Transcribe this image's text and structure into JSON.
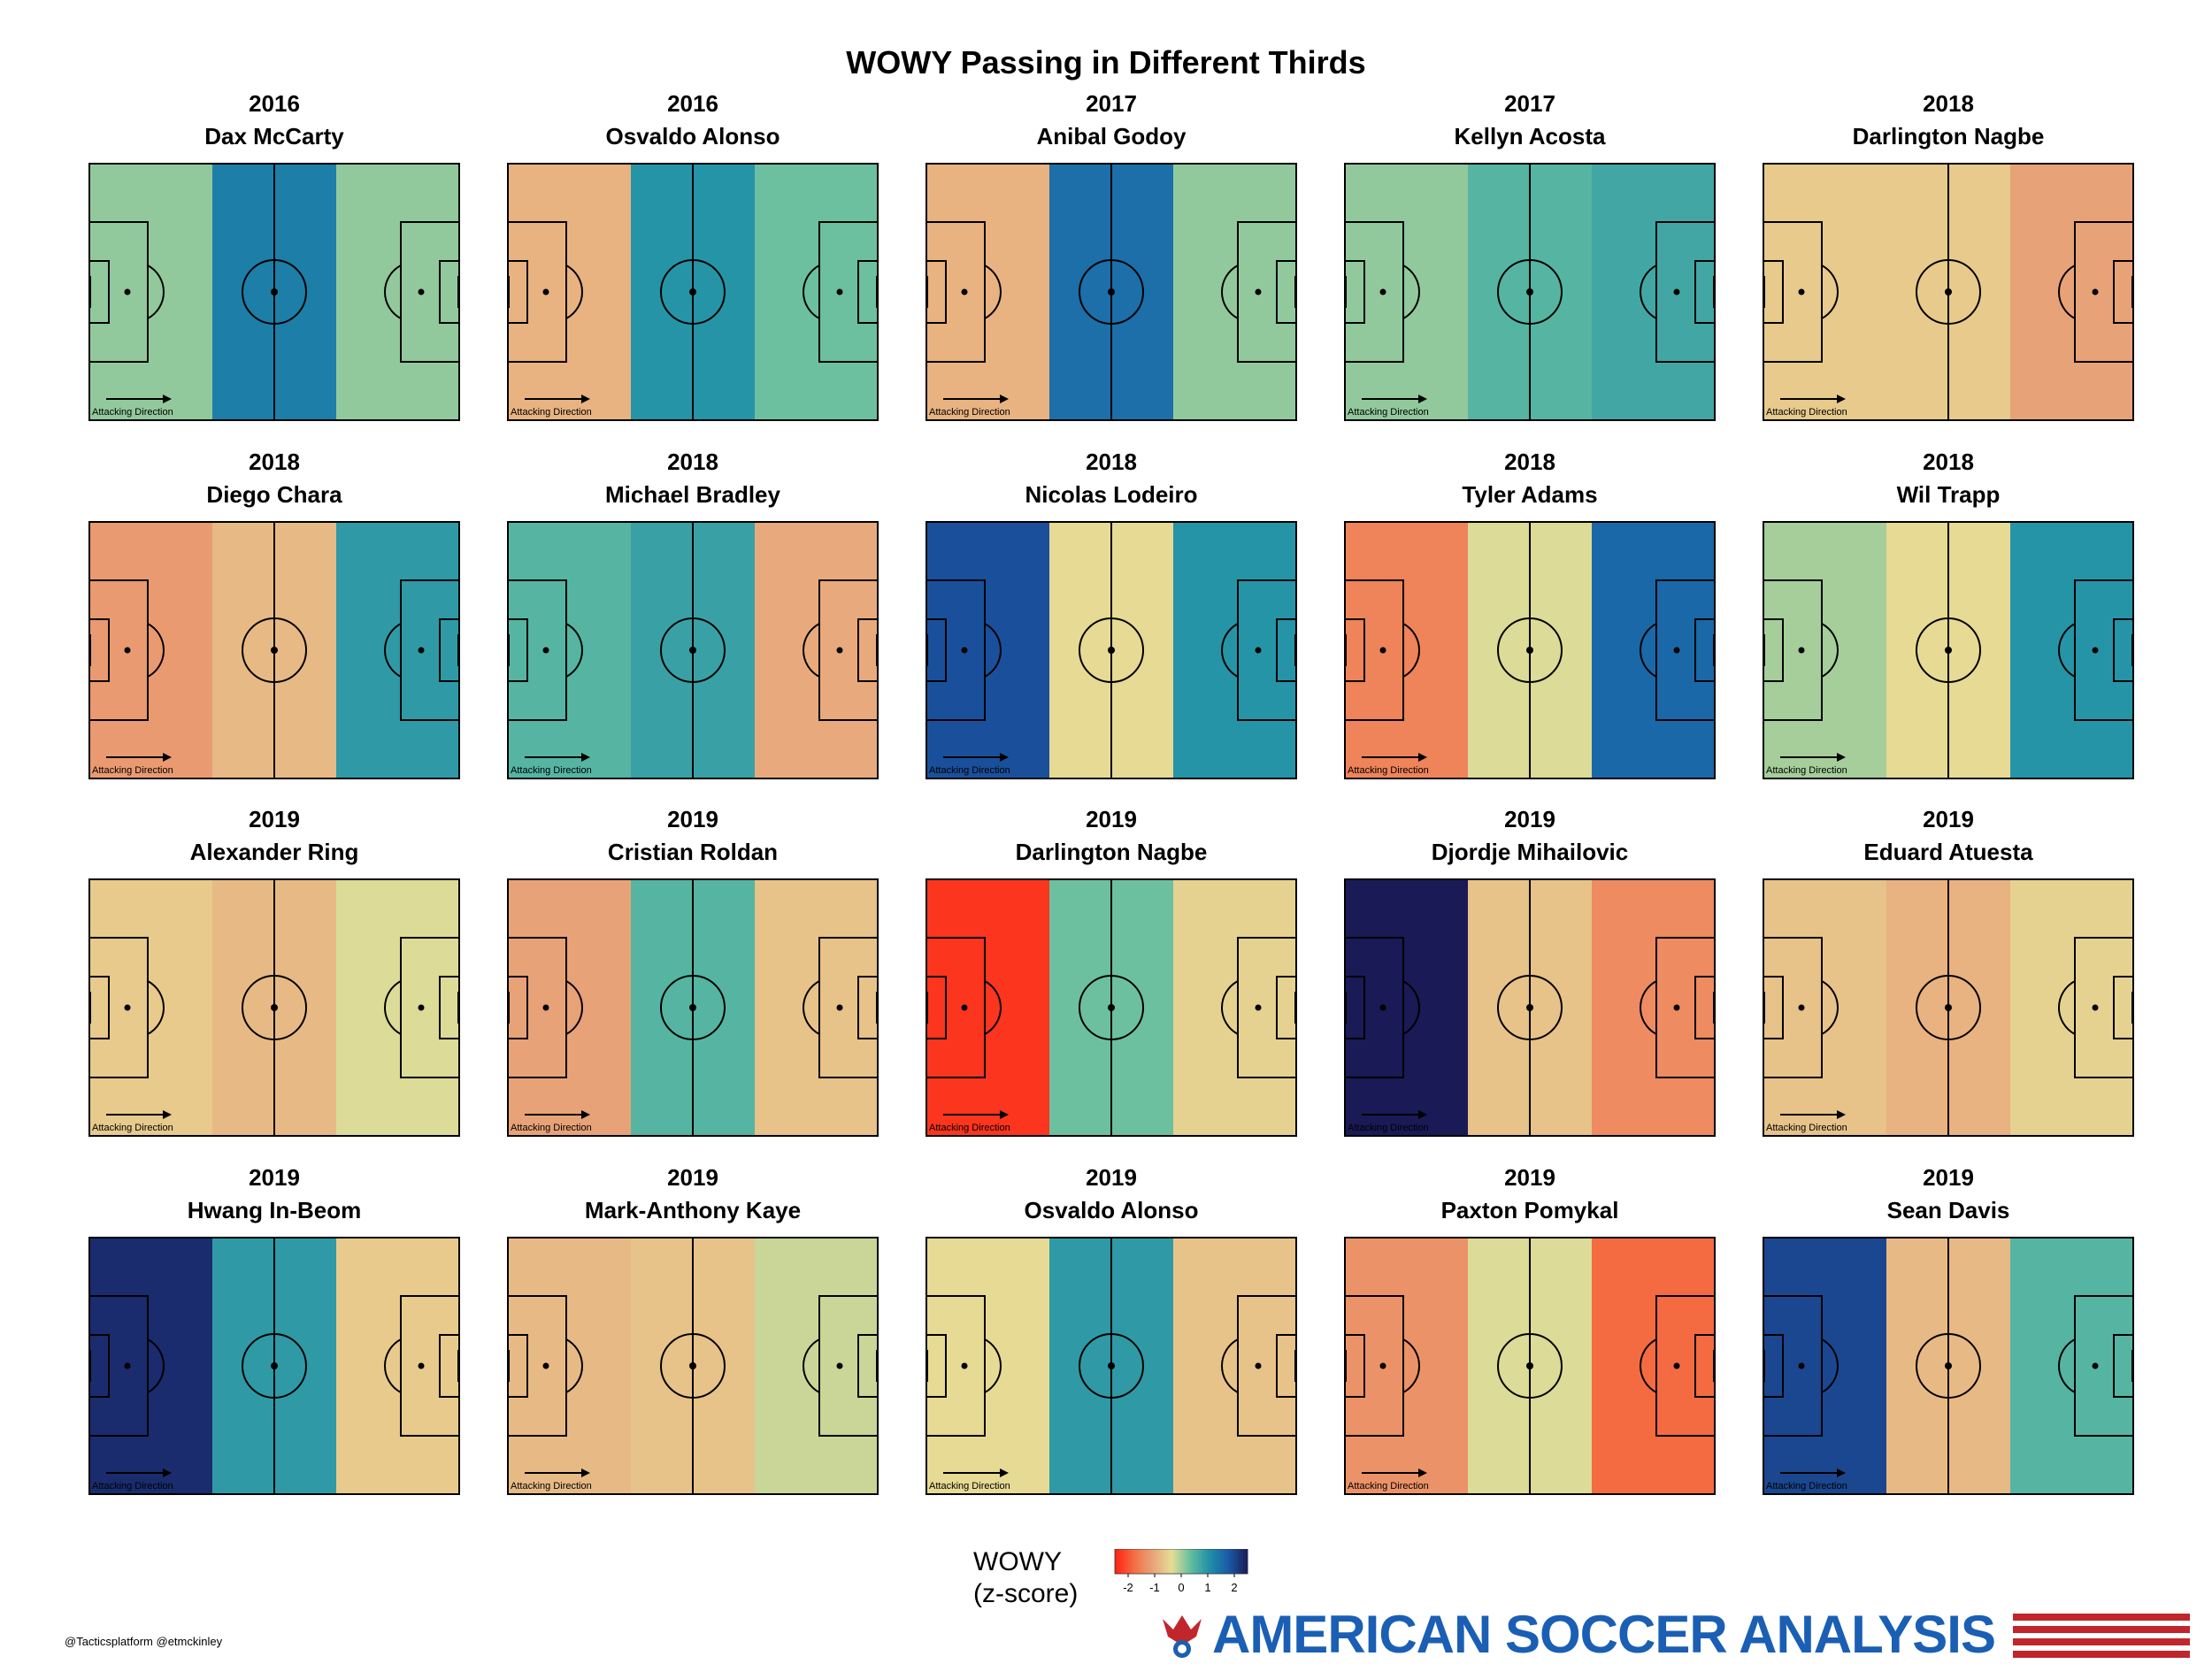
{
  "title": "WOWY Passing in Different Thirds",
  "pitch_caption": "Attacking Direction",
  "legend": {
    "title_line1": "WOWY",
    "title_line2": "(z-score)",
    "ticks": [
      "-2",
      "-1",
      "0",
      "1",
      "2"
    ]
  },
  "credit": "@Tacticsplatform @etmckinley",
  "brand": "AMERICAN SOCCER ANALYSIS",
  "chart_data": {
    "type": "heatmap",
    "title": "WOWY Passing in Different Thirds",
    "colorbar_label": "WOWY (z-score)",
    "value_range": [
      -2.5,
      2.5
    ],
    "thirds": [
      "Defensive third",
      "Middle third",
      "Attacking third"
    ],
    "panels": [
      {
        "year": "2016",
        "player": "Dax McCarty",
        "values": [
          0.1,
          1.3,
          0.1
        ]
      },
      {
        "year": "2016",
        "player": "Osvaldo Alonso",
        "values": [
          -0.9,
          1.0,
          0.3
        ]
      },
      {
        "year": "2017",
        "player": "Anibal Godoy",
        "values": [
          -0.9,
          1.5,
          0.1
        ]
      },
      {
        "year": "2017",
        "player": "Kellyn Acosta",
        "values": [
          0.1,
          0.5,
          0.7
        ]
      },
      {
        "year": "2018",
        "player": "Darlington Nagbe",
        "values": [
          -0.6,
          -0.6,
          -1.1
        ]
      },
      {
        "year": "2018",
        "player": "Diego Chara",
        "values": [
          -1.2,
          -0.8,
          0.9
        ]
      },
      {
        "year": "2018",
        "player": "Michael Bradley",
        "values": [
          0.5,
          0.8,
          -1.0
        ]
      },
      {
        "year": "2018",
        "player": "Nicolas Lodeiro",
        "values": [
          1.9,
          -0.4,
          1.0
        ]
      },
      {
        "year": "2018",
        "player": "Tyler Adams",
        "values": [
          -1.5,
          -0.3,
          1.6
        ]
      },
      {
        "year": "2018",
        "player": "Wil Trapp",
        "values": [
          0.0,
          -0.4,
          1.0
        ]
      },
      {
        "year": "2019",
        "player": "Alexander Ring",
        "values": [
          -0.6,
          -0.8,
          -0.3
        ]
      },
      {
        "year": "2019",
        "player": "Cristian Roldan",
        "values": [
          -1.1,
          0.5,
          -0.7
        ]
      },
      {
        "year": "2019",
        "player": "Darlington Nagbe",
        "values": [
          -2.3,
          0.3,
          -0.5
        ]
      },
      {
        "year": "2019",
        "player": "Djordje Mihailovic",
        "values": [
          2.5,
          -0.7,
          -1.4
        ]
      },
      {
        "year": "2019",
        "player": "Eduard Atuesta",
        "values": [
          -0.7,
          -0.9,
          -0.5
        ]
      },
      {
        "year": "2019",
        "player": "Hwang In-Beom",
        "values": [
          2.3,
          0.9,
          -0.6
        ]
      },
      {
        "year": "2019",
        "player": "Mark-Anthony Kaye",
        "values": [
          -0.8,
          -0.7,
          -0.2
        ]
      },
      {
        "year": "2019",
        "player": "Osvaldo Alonso",
        "values": [
          -0.4,
          0.9,
          -0.7
        ]
      },
      {
        "year": "2019",
        "player": "Paxton Pomykal",
        "values": [
          -1.3,
          -0.3,
          -1.8
        ]
      },
      {
        "year": "2019",
        "player": "Sean Davis",
        "values": [
          2.0,
          -0.8,
          0.5
        ]
      }
    ]
  },
  "colors": {
    "colormap_stops": [
      "#ff1f10",
      "#f46d43",
      "#e8a47a",
      "#e6dd96",
      "#63bea0",
      "#1f8fa8",
      "#1a5aa8",
      "#1a1a56"
    ],
    "brand_blue": "#1a5fb4",
    "brand_red": "#c0262c"
  }
}
